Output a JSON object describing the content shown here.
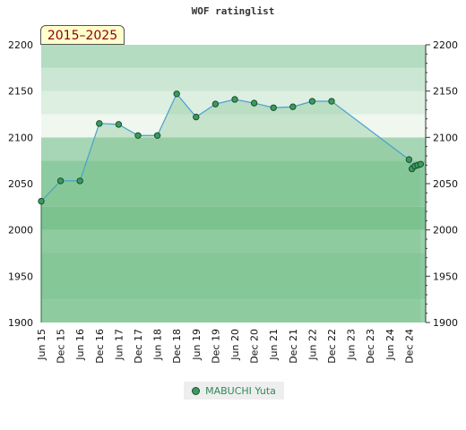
{
  "title": "WOF ratinglist",
  "period_badge": "2015–2025",
  "legend": {
    "name": "MABUCHI Yuta"
  },
  "colors": {
    "line": "#4a9fd0",
    "marker_fill": "#3b9a5e",
    "marker_stroke": "#1a4f2e",
    "fill_area": "#7bbf8a",
    "fill_area_opacity": 0.35
  },
  "chart_data": {
    "type": "line",
    "title": "WOF ratinglist",
    "ylim": [
      1900,
      2200
    ],
    "y_ticks": [
      1900,
      1950,
      2000,
      2050,
      2100,
      2150,
      2200
    ],
    "x_tick_labels": [
      "Jun 15",
      "Dec 15",
      "Jun 16",
      "Dec 16",
      "Jun 17",
      "Dec 17",
      "Jun 18",
      "Dec 18",
      "Jun 19",
      "Dec 19",
      "Jun 20",
      "Dec 20",
      "Jun 21",
      "Dec 21",
      "Jun 22",
      "Dec 22",
      "Jun 23",
      "Dec 23",
      "Jun 24",
      "Dec 24"
    ],
    "bands": [
      {
        "from": 1900,
        "to": 1925,
        "color": "#99d1ab"
      },
      {
        "from": 1925,
        "to": 1975,
        "color": "#8bcb9f"
      },
      {
        "from": 1975,
        "to": 2000,
        "color": "#99d1ab"
      },
      {
        "from": 2000,
        "to": 2025,
        "color": "#7dc393"
      },
      {
        "from": 2025,
        "to": 2050,
        "color": "#8ccb9f"
      },
      {
        "from": 2050,
        "to": 2075,
        "color": "#8ccb9f"
      },
      {
        "from": 2075,
        "to": 2100,
        "color": "#a6d6b5"
      },
      {
        "from": 2100,
        "to": 2125,
        "color": "#eff7ef"
      },
      {
        "from": 2125,
        "to": 2150,
        "color": "#dcefe1"
      },
      {
        "from": 2150,
        "to": 2175,
        "color": "#cbe7d3"
      },
      {
        "from": 2175,
        "to": 2200,
        "color": "#b4dcc0"
      }
    ],
    "series": [
      {
        "name": "MABUCHI Yuta",
        "x": [
          0,
          1,
          2,
          3,
          4,
          5,
          6,
          7,
          8,
          9,
          10,
          11,
          12,
          13,
          14,
          15,
          19,
          19.15,
          19.3,
          19.45,
          19.6
        ],
        "values": [
          2031,
          2053,
          2053,
          2115,
          2114,
          2102,
          2102,
          2147,
          2122,
          2136,
          2141,
          2137,
          2132,
          2133,
          2139,
          2139,
          2076,
          2066,
          2069,
          2070,
          2071
        ]
      }
    ]
  }
}
